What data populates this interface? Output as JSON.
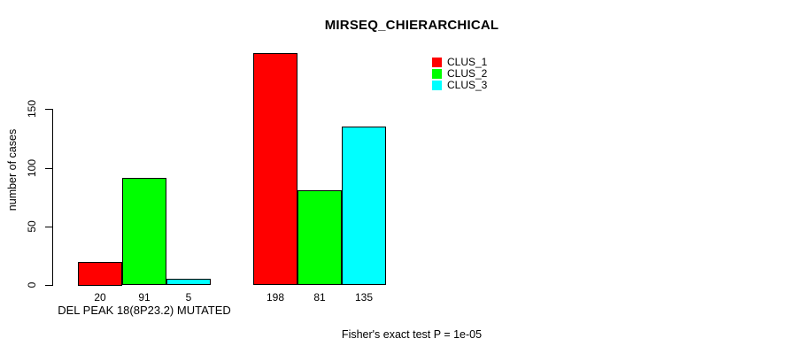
{
  "chart_data": {
    "type": "bar",
    "title": "MIRSEQ_CHIERARCHICAL",
    "ylabel": "number of cases",
    "xlabel": "",
    "yticks": [
      0,
      50,
      100,
      150
    ],
    "ylim": [
      0,
      200
    ],
    "grid": false,
    "legend_position": "top-right",
    "background": "#ffffff",
    "axis_color": "#000000",
    "bar_border_color": "#000000",
    "series": [
      {
        "name": "CLUS_1",
        "color": "#FF0000"
      },
      {
        "name": "CLUS_2",
        "color": "#00FF00"
      },
      {
        "name": "CLUS_3",
        "color": "#00FFFF"
      }
    ],
    "groups": [
      {
        "label": "DEL PEAK 18(8P23.2) MUTATED",
        "values": [
          20,
          91,
          5
        ]
      },
      {
        "label": "",
        "values": [
          198,
          81,
          135
        ]
      }
    ],
    "annotation": "Fisher's exact test P = 1e-05"
  }
}
